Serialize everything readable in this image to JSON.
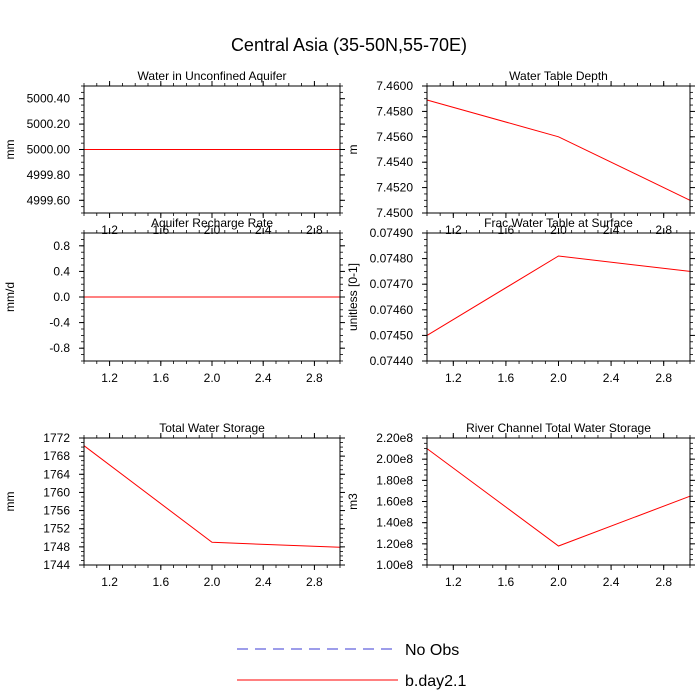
{
  "figure": {
    "title": "Central Asia (35-50N,55-70E)"
  },
  "legend": {
    "entries": [
      {
        "label": "No Obs",
        "color": "#3b3bd6",
        "style": "dashed"
      },
      {
        "label": "b.day2.1",
        "color": "#ff0000",
        "style": "solid"
      }
    ]
  },
  "chart_data": [
    {
      "type": "line",
      "title": "Water in Unconfined Aquifer",
      "xlabel": "",
      "ylabel": "mm",
      "xlim": [
        1.0,
        3.0
      ],
      "ylim": [
        4999.5,
        5000.5
      ],
      "xticks": [
        1.2,
        1.6,
        2.0,
        2.4,
        2.8
      ],
      "xtick_labels": [
        "1.2",
        "1.6",
        "2.0",
        "2.4",
        "2.8"
      ],
      "yticks": [
        4999.6,
        4999.8,
        5000.0,
        5000.2,
        5000.4
      ],
      "ytick_labels": [
        "4999.60",
        "4999.80",
        "5000.00",
        "5000.20",
        "5000.40"
      ],
      "grid": false,
      "series": [
        {
          "name": "b.day2.1",
          "color": "#ff0000",
          "x": [
            1,
            2,
            3
          ],
          "y": [
            5000.0,
            5000.0,
            5000.0
          ]
        }
      ]
    },
    {
      "type": "line",
      "title": "Water Table Depth",
      "xlabel": "",
      "ylabel": "m",
      "xlim": [
        1.0,
        3.0
      ],
      "ylim": [
        7.45,
        7.46
      ],
      "xticks": [
        1.2,
        1.6,
        2.0,
        2.4,
        2.8
      ],
      "xtick_labels": [
        "1.2",
        "1.6",
        "2.0",
        "2.4",
        "2.8"
      ],
      "yticks": [
        7.45,
        7.452,
        7.454,
        7.456,
        7.458,
        7.46
      ],
      "ytick_labels": [
        "7.4500",
        "7.4520",
        "7.4540",
        "7.4560",
        "7.4580",
        "7.4600"
      ],
      "grid": false,
      "series": [
        {
          "name": "b.day2.1",
          "color": "#ff0000",
          "x": [
            1,
            2,
            3
          ],
          "y": [
            7.4589,
            7.456,
            7.451
          ]
        }
      ]
    },
    {
      "type": "line",
      "title": "Aquifer Recharge Rate",
      "xlabel": "",
      "ylabel": "mm/d",
      "xlim": [
        1.0,
        3.0
      ],
      "ylim": [
        -1.0,
        1.0
      ],
      "xticks": [
        1.2,
        1.6,
        2.0,
        2.4,
        2.8
      ],
      "xtick_labels": [
        "1.2",
        "1.6",
        "2.0",
        "2.4",
        "2.8"
      ],
      "yticks": [
        -0.8,
        -0.4,
        0.0,
        0.4,
        0.8
      ],
      "ytick_labels": [
        "-0.8",
        "-0.4",
        "0.0",
        "0.4",
        "0.8"
      ],
      "grid": false,
      "series": [
        {
          "name": "b.day2.1",
          "color": "#ff0000",
          "x": [
            1,
            2,
            3
          ],
          "y": [
            0.0,
            0.0,
            0.0
          ]
        }
      ]
    },
    {
      "type": "line",
      "title": "Frac Water Table at Surface",
      "xlabel": "",
      "ylabel": "unitless [0-1]",
      "xlim": [
        1.0,
        3.0
      ],
      "ylim": [
        0.0744,
        0.0749
      ],
      "xticks": [
        1.2,
        1.6,
        2.0,
        2.4,
        2.8
      ],
      "xtick_labels": [
        "1.2",
        "1.6",
        "2.0",
        "2.4",
        "2.8"
      ],
      "yticks": [
        0.0744,
        0.0745,
        0.0746,
        0.0747,
        0.0748,
        0.0749
      ],
      "ytick_labels": [
        "0.07440",
        "0.07450",
        "0.07460",
        "0.07470",
        "0.07480",
        "0.07490"
      ],
      "grid": false,
      "series": [
        {
          "name": "b.day2.1",
          "color": "#ff0000",
          "x": [
            1,
            2,
            3
          ],
          "y": [
            0.0745,
            0.07481,
            0.07475
          ]
        }
      ]
    },
    {
      "type": "line",
      "title": "Total Water Storage",
      "xlabel": "",
      "ylabel": "mm",
      "xlim": [
        1.0,
        3.0
      ],
      "ylim": [
        1744,
        1772
      ],
      "xticks": [
        1.2,
        1.6,
        2.0,
        2.4,
        2.8
      ],
      "xtick_labels": [
        "1.2",
        "1.6",
        "2.0",
        "2.4",
        "2.8"
      ],
      "yticks": [
        1744,
        1748,
        1752,
        1756,
        1760,
        1764,
        1768,
        1772
      ],
      "ytick_labels": [
        "1744",
        "1748",
        "1752",
        "1756",
        "1760",
        "1764",
        "1768",
        "1772"
      ],
      "grid": false,
      "series": [
        {
          "name": "b.day2.1",
          "color": "#ff0000",
          "x": [
            1,
            2,
            3
          ],
          "y": [
            1770.3,
            1749.0,
            1747.9
          ]
        }
      ]
    },
    {
      "type": "line",
      "title": "River Channel Total Water Storage",
      "xlabel": "",
      "ylabel": "m3",
      "xlim": [
        1.0,
        3.0
      ],
      "ylim": [
        100000000,
        220000000
      ],
      "xticks": [
        1.2,
        1.6,
        2.0,
        2.4,
        2.8
      ],
      "xtick_labels": [
        "1.2",
        "1.6",
        "2.0",
        "2.4",
        "2.8"
      ],
      "yticks": [
        100000000,
        120000000,
        140000000,
        160000000,
        180000000,
        200000000,
        220000000
      ],
      "ytick_labels": [
        "1.00e8",
        "1.20e8",
        "1.40e8",
        "1.60e8",
        "1.80e8",
        "2.00e8",
        "2.20e8"
      ],
      "grid": false,
      "series": [
        {
          "name": "b.day2.1",
          "color": "#ff0000",
          "x": [
            1,
            2,
            3
          ],
          "y": [
            210000000,
            118000000,
            165000000
          ]
        }
      ]
    }
  ]
}
